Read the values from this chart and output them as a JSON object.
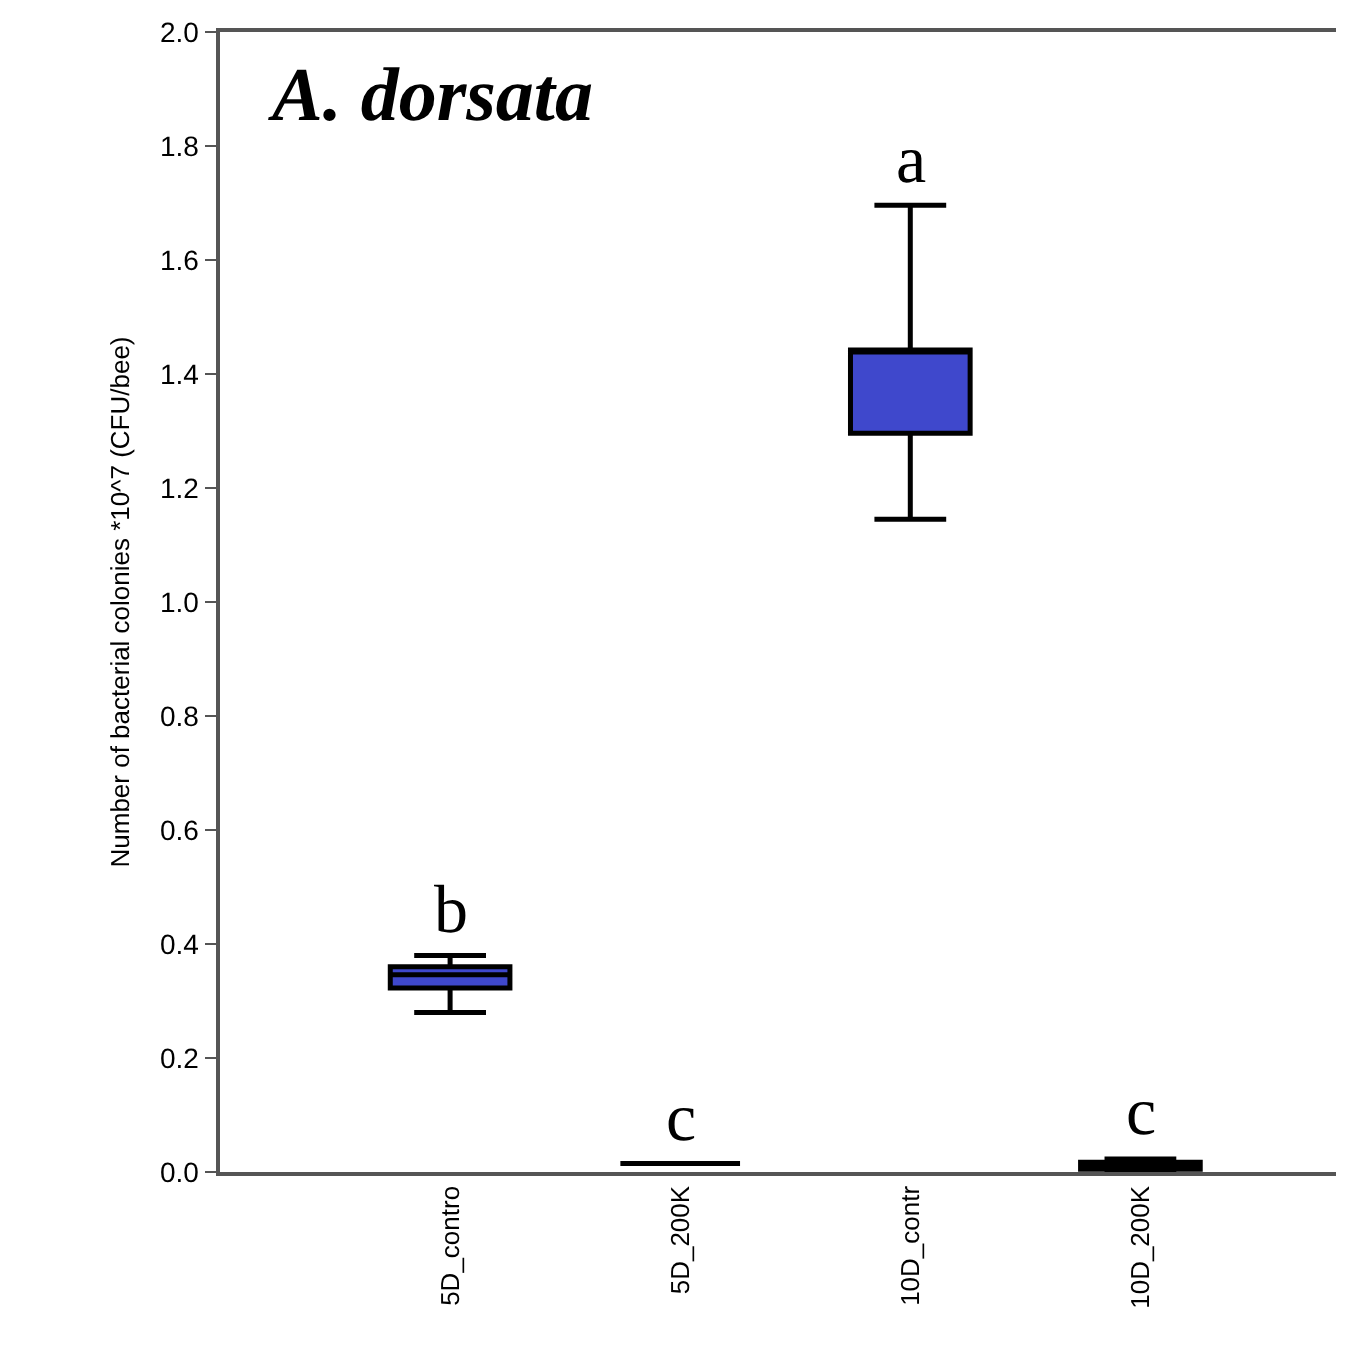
{
  "chart_data": {
    "type": "box",
    "title": "A. dorsata",
    "ylabel": "Number of bacterial colonies *10^7 (CFU/bee)",
    "categories": [
      "5D_contro",
      "5D_200K",
      "10D_contr",
      "10D_200K"
    ],
    "colors": [
      "#3f48cc",
      "#000000",
      "#3f48cc",
      "#000000"
    ],
    "boxes": [
      {
        "low": 0.28,
        "q1": 0.323,
        "median": 0.346,
        "q3": 0.36,
        "high": 0.38
      },
      {
        "low": 0.015,
        "q1": 0.015,
        "median": 0.015,
        "q3": 0.015,
        "high": 0.015
      },
      {
        "low": 1.145,
        "q1": 1.296,
        "median": 1.442,
        "q3": 1.442,
        "high": 1.696
      },
      {
        "low": 0.003,
        "q1": 0.005,
        "median": 0.01,
        "q3": 0.017,
        "high": 0.023
      }
    ],
    "ylim": [
      0,
      2
    ],
    "yticks": [
      {
        "value": 0,
        "label": "0.0"
      },
      {
        "value": 0.2,
        "label": "0.2"
      },
      {
        "value": 0.4,
        "label": "0.4"
      },
      {
        "value": 0.6,
        "label": "0.6"
      },
      {
        "value": 0.8,
        "label": "0.8"
      },
      {
        "value": 1,
        "label": "1.0"
      },
      {
        "value": 1.2,
        "label": "1.2"
      },
      {
        "value": 1.4,
        "label": "1.4"
      },
      {
        "value": 1.6,
        "label": "1.6"
      },
      {
        "value": 1.8,
        "label": "1.8"
      },
      {
        "value": 2,
        "label": "2.0"
      }
    ],
    "grid": false,
    "annotations": [
      {
        "text": "b",
        "x": "5D_contro",
        "y": 0.38
      },
      {
        "text": "c",
        "x": "5D_200K",
        "y": 0.015
      },
      {
        "text": "a",
        "x": "10D_contr",
        "y": 1.696
      },
      {
        "text": "c",
        "x": "10D_200K",
        "y": 0.023
      }
    ]
  }
}
